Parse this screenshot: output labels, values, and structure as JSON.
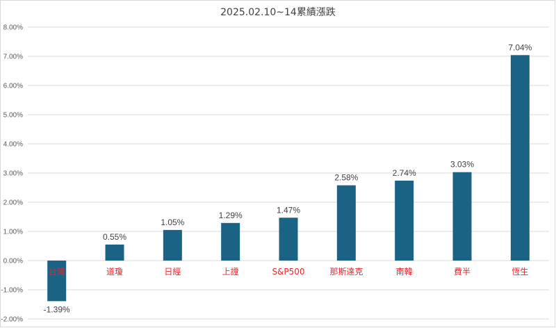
{
  "chart_data": {
    "type": "bar",
    "title": "2025.02.10~14累績漲跌",
    "categories": [
      "台灣",
      "道瓊",
      "日經",
      "上證",
      "S&P500",
      "那斯達克",
      "南韓",
      "費半",
      "恆生"
    ],
    "values": [
      -1.39,
      0.55,
      1.05,
      1.29,
      1.47,
      2.58,
      2.74,
      3.03,
      7.04
    ],
    "data_labels": [
      "-1.39%",
      "0.55%",
      "1.05%",
      "1.29%",
      "1.47%",
      "2.58%",
      "2.74%",
      "3.03%",
      "7.04%"
    ],
    "ylim": [
      -2,
      8
    ],
    "yticks": [
      8,
      7,
      6,
      5,
      4,
      3,
      2,
      1,
      0,
      -1,
      -2
    ],
    "ytick_labels": [
      "8.00%",
      "7.00%",
      "6.00%",
      "5.00%",
      "4.00%",
      "3.00%",
      "2.00%",
      "1.00%",
      "0.00%",
      "-1.00%",
      "-2.00%"
    ],
    "xlabel": "",
    "ylabel": "",
    "grid": true,
    "legend": "none",
    "colors": {
      "bar": "#1a6385",
      "category_label": "#e8262a",
      "gridline": "#d9d9d9",
      "text": "#404040"
    }
  }
}
